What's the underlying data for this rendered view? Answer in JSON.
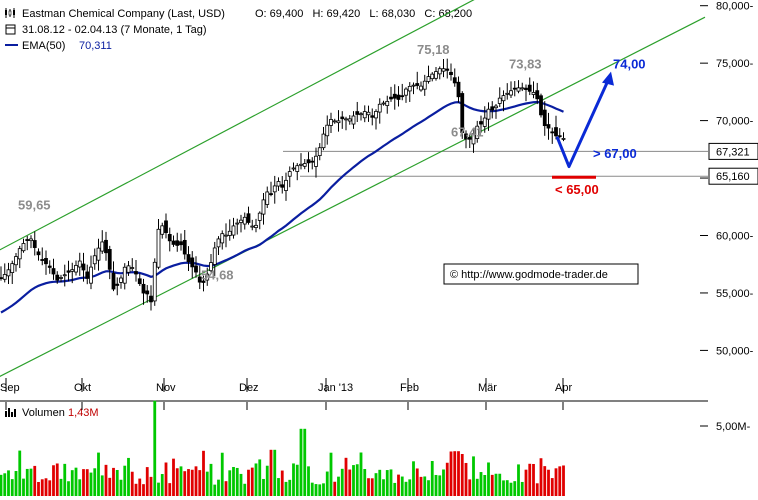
{
  "header": {
    "icon": "candlestick-icon",
    "title": "Eastman Chemical Company (Last, USD)",
    "ohlc": "O: 69,400   H: 69,420   L: 68,030   C: 68,200",
    "range": "31.08.12 - 02.04.13 (7 Monate, 1 Tag)",
    "ema_label": "EMA(50)",
    "ema_value": "70,311"
  },
  "volume_header": {
    "label": "Volumen",
    "value": "1,43M"
  },
  "copyright": "© http://www.godmode-trader.de",
  "colors": {
    "up": "#00c800",
    "down": "#e00000",
    "ema": "#0a1ea0",
    "channel": "#2ca02c",
    "target": "#0a2ad6",
    "stop": "#e00000"
  },
  "chart_data": {
    "type": "candlestick",
    "title": "Eastman Chemical Company (Last, USD)",
    "x_labels": [
      "Sep",
      "Okt",
      "Nov",
      "Dez",
      "Jan '13",
      "Feb",
      "Mär",
      "Apr"
    ],
    "y_ticks": [
      "50,000-",
      "55,000-",
      "60,000-",
      "65,000-",
      "70,000-",
      "75,000-",
      "80,000-"
    ],
    "y_values": [
      50,
      55,
      60,
      65,
      70,
      75,
      80
    ],
    "ylim": [
      48.5,
      81.5
    ],
    "price_tags": [
      {
        "label": "67,321",
        "value": 67.32
      },
      {
        "label": "65,160",
        "value": 65.16
      }
    ],
    "annotations": [
      {
        "text": "59,65",
        "value": 59.65,
        "style": "grey"
      },
      {
        "text": "54,68",
        "value": 54.68,
        "style": "grey"
      },
      {
        "text": "75,18",
        "value": 75.18,
        "style": "grey"
      },
      {
        "text": "73,83",
        "value": 73.83,
        "style": "grey"
      },
      {
        "text": "67,41",
        "value": 67.41,
        "style": "grey"
      },
      {
        "text": "74,00",
        "value": 74.0,
        "style": "blue"
      },
      {
        "text": "> 67,00",
        "value": 67.0,
        "style": "blue"
      },
      {
        "text": "< 65,00",
        "value": 65.0,
        "style": "red"
      }
    ],
    "channel": {
      "upper": [
        [
          -10,
          58.3
        ],
        [
          615,
          87.0
        ]
      ],
      "lower": [
        [
          -10,
          47.3
        ],
        [
          705,
          79.0
        ]
      ]
    },
    "close_anchors": [
      [
        0,
        56.2
      ],
      [
        7,
        56.8
      ],
      [
        14,
        57.8
      ],
      [
        20,
        58.9
      ],
      [
        26,
        59.6
      ],
      [
        31,
        59.7
      ],
      [
        37,
        58.5
      ],
      [
        43,
        57.8
      ],
      [
        50,
        57.2
      ],
      [
        57,
        56.1
      ],
      [
        65,
        56.6
      ],
      [
        72,
        57.0
      ],
      [
        80,
        57.8
      ],
      [
        87,
        56.2
      ],
      [
        95,
        58.3
      ],
      [
        102,
        59.5
      ],
      [
        108,
        58.0
      ],
      [
        113,
        55.3
      ],
      [
        119,
        55.8
      ],
      [
        125,
        57.3
      ],
      [
        131,
        57.4
      ],
      [
        137,
        56.5
      ],
      [
        143,
        55.0
      ],
      [
        148,
        54.9
      ],
      [
        152,
        54.0
      ],
      [
        155,
        58.0
      ],
      [
        158,
        60.5
      ],
      [
        163,
        60.9
      ],
      [
        169,
        59.6
      ],
      [
        175,
        59.1
      ],
      [
        181,
        59.2
      ],
      [
        187,
        57.9
      ],
      [
        192,
        57.3
      ],
      [
        197,
        56.7
      ],
      [
        201,
        55.6
      ],
      [
        205,
        56.1
      ],
      [
        210,
        57.3
      ],
      [
        215,
        59.0
      ],
      [
        221,
        60.2
      ],
      [
        227,
        60.0
      ],
      [
        233,
        60.8
      ],
      [
        239,
        61.2
      ],
      [
        245,
        61.6
      ],
      [
        251,
        60.8
      ],
      [
        257,
        60.9
      ],
      [
        262,
        62.8
      ],
      [
        267,
        63.8
      ],
      [
        272,
        63.6
      ],
      [
        277,
        64.9
      ],
      [
        283,
        64.1
      ],
      [
        289,
        65.5
      ],
      [
        295,
        66.0
      ],
      [
        301,
        66.2
      ],
      [
        307,
        66.3
      ],
      [
        313,
        66.4
      ],
      [
        319,
        67.4
      ],
      [
        325,
        69.3
      ],
      [
        331,
        70.1
      ],
      [
        337,
        69.9
      ],
      [
        343,
        70.2
      ],
      [
        349,
        70.1
      ],
      [
        355,
        70.5
      ],
      [
        361,
        70.6
      ],
      [
        367,
        70.9
      ],
      [
        373,
        70.2
      ],
      [
        379,
        71.4
      ],
      [
        386,
        71.6
      ],
      [
        393,
        72.0
      ],
      [
        400,
        71.8
      ],
      [
        407,
        72.9
      ],
      [
        414,
        73.1
      ],
      [
        421,
        73.0
      ],
      [
        428,
        73.8
      ],
      [
        435,
        74.2
      ],
      [
        441,
        74.6
      ],
      [
        447,
        74.4
      ],
      [
        452,
        73.9
      ],
      [
        456,
        73.0
      ],
      [
        458,
        72.6
      ],
      [
        460,
        70.5
      ],
      [
        462,
        69.0
      ],
      [
        465,
        68.5
      ],
      [
        468,
        68.2
      ],
      [
        472,
        68.6
      ],
      [
        477,
        69.5
      ],
      [
        483,
        69.8
      ],
      [
        488,
        71.0
      ],
      [
        494,
        70.9
      ],
      [
        500,
        72.0
      ],
      [
        506,
        72.3
      ],
      [
        511,
        72.6
      ],
      [
        516,
        72.8
      ],
      [
        521,
        72.9
      ],
      [
        526,
        72.7
      ],
      [
        531,
        72.5
      ],
      [
        536,
        72.4
      ],
      [
        540,
        70.8
      ],
      [
        544,
        69.6
      ],
      [
        548,
        69.4
      ],
      [
        553,
        68.9
      ],
      [
        557,
        68.6
      ],
      [
        561,
        68.7
      ],
      [
        566,
        68.2
      ]
    ],
    "volume_range": [
      0,
      9000000
    ],
    "volume_ticks": [
      {
        "label": "5,00M-",
        "value": 5000000
      }
    ]
  }
}
